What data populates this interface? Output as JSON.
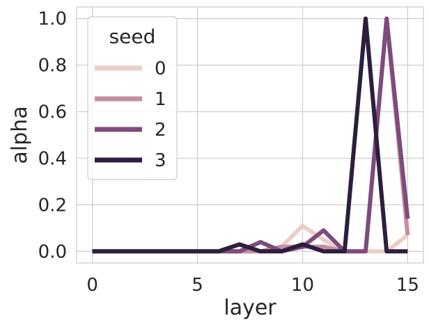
{
  "chart_data": {
    "type": "line",
    "xlabel": "layer",
    "ylabel": "alpha",
    "xlim": [
      -0.75,
      15.75
    ],
    "ylim": [
      -0.05,
      1.05
    ],
    "xticks": [
      "0",
      "5",
      "10",
      "15"
    ],
    "yticks": [
      "0.0",
      "0.2",
      "0.4",
      "0.6",
      "0.8",
      "1.0"
    ],
    "grid": true,
    "legend": {
      "title": "seed",
      "placement": "top-left"
    },
    "x": [
      0,
      1,
      2,
      3,
      4,
      5,
      6,
      7,
      8,
      9,
      10,
      11,
      12,
      13,
      14,
      15
    ],
    "series": [
      {
        "name": "0",
        "color": "#ebcec9",
        "values": [
          0,
          0,
          0,
          0,
          0,
          0,
          0,
          0,
          0,
          0.02,
          0.11,
          0.05,
          0,
          0,
          0,
          0.07
        ]
      },
      {
        "name": "1",
        "color": "#c78da2",
        "values": [
          0,
          0,
          0,
          0,
          0,
          0,
          0,
          0,
          0,
          0.02,
          0.02,
          0.02,
          0,
          0,
          1.0,
          0.07
        ]
      },
      {
        "name": "2",
        "color": "#7e4b7c",
        "values": [
          0,
          0,
          0,
          0,
          0,
          0,
          0,
          0,
          0.04,
          0,
          0.02,
          0.09,
          0,
          0,
          1.0,
          0.14
        ]
      },
      {
        "name": "3",
        "color": "#2d1e3e",
        "values": [
          0,
          0,
          0,
          0,
          0,
          0,
          0,
          0.03,
          0,
          0,
          0.03,
          0,
          0,
          1.0,
          0,
          0
        ]
      }
    ]
  }
}
